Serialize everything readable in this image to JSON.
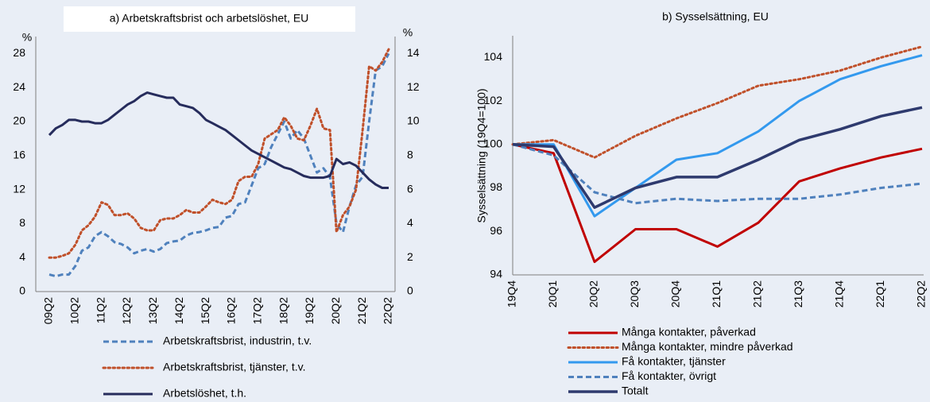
{
  "chart_data": [
    {
      "type": "line",
      "title": "a) Arbetskraftsbrist och arbetslöshet, EU",
      "ylabel": "%",
      "y2label": "%",
      "categories": [
        "09Q2",
        null,
        null,
        null,
        "10Q2",
        null,
        null,
        null,
        "11Q2",
        null,
        null,
        null,
        "12Q2",
        null,
        null,
        null,
        "13Q2",
        null,
        null,
        null,
        "14Q2",
        null,
        null,
        null,
        "15Q2",
        null,
        null,
        null,
        "16Q2",
        null,
        null,
        null,
        "17Q2",
        null,
        null,
        null,
        "18Q2",
        null,
        null,
        null,
        "19Q2",
        null,
        null,
        null,
        "20Q2",
        null,
        null,
        null,
        "21Q2",
        null,
        null,
        null,
        "22Q2"
      ],
      "ylim": [
        0,
        30
      ],
      "yticks": [
        0,
        4,
        8,
        12,
        16,
        20,
        24,
        28
      ],
      "y2lim": [
        0,
        15
      ],
      "y2ticks": [
        0,
        2,
        4,
        6,
        8,
        10,
        12,
        14
      ],
      "series": [
        {
          "name": "Arbetskraftsbrist, industrin, t.v.",
          "color": "#4f81bd",
          "dash": "dashed",
          "values": [
            2.0,
            1.8,
            2.0,
            2.0,
            3.0,
            4.8,
            5.2,
            6.5,
            7.0,
            6.5,
            5.8,
            5.6,
            5.2,
            4.5,
            4.8,
            5.0,
            4.7,
            5.0,
            5.7,
            5.9,
            6.0,
            6.6,
            6.9,
            7.0,
            7.2,
            7.5,
            7.6,
            8.7,
            8.9,
            10.3,
            10.5,
            12.5,
            14.5,
            15.0,
            17.0,
            18.5,
            20.0,
            18.0,
            19.0,
            18.0,
            16.0,
            14.0,
            14.5,
            13.5,
            8.0,
            7.0,
            10.0,
            12.5,
            13.5,
            20.0,
            26.0,
            26.5,
            28.0
          ]
        },
        {
          "name": "Arbetskraftsbrist, tjänster, t.v.",
          "color": "#c0502a",
          "dash": "dotted",
          "values": [
            4.0,
            4.0,
            4.2,
            4.5,
            5.5,
            7.2,
            7.8,
            8.8,
            10.5,
            10.2,
            9.0,
            9.0,
            9.2,
            8.6,
            7.5,
            7.2,
            7.2,
            8.4,
            8.6,
            8.6,
            9.0,
            9.6,
            9.3,
            9.3,
            10.0,
            10.8,
            10.5,
            10.3,
            10.8,
            13.0,
            13.5,
            13.5,
            15.0,
            18.0,
            18.5,
            19.0,
            20.5,
            19.5,
            18.0,
            17.8,
            19.5,
            21.5,
            19.2,
            19.0,
            7.0,
            9.0,
            10.0,
            12.0,
            19.0,
            26.5,
            26.0,
            27.0,
            28.5
          ]
        },
        {
          "name": "Arbetslöshet, t.h.",
          "color": "#262c5c",
          "dash": "solid",
          "axis": "y2",
          "values": [
            9.2,
            9.6,
            9.8,
            10.1,
            10.1,
            10.0,
            10.0,
            9.9,
            9.9,
            10.1,
            10.4,
            10.7,
            11.0,
            11.2,
            11.5,
            11.7,
            11.6,
            11.5,
            11.4,
            11.4,
            11.0,
            10.9,
            10.8,
            10.5,
            10.1,
            9.9,
            9.7,
            9.5,
            9.2,
            8.9,
            8.6,
            8.3,
            8.1,
            7.9,
            7.7,
            7.5,
            7.3,
            7.2,
            7.0,
            6.8,
            6.7,
            6.7,
            6.7,
            6.8,
            7.8,
            7.5,
            7.6,
            7.4,
            7.0,
            6.6,
            6.3,
            6.1,
            6.1
          ]
        }
      ]
    },
    {
      "type": "line",
      "title": "b) Sysselsättning, EU",
      "ylabel": "Sysselsättning (19Q4=100)",
      "categories": [
        "19Q4",
        "20Q1",
        "20Q2",
        "20Q3",
        "20Q4",
        "21Q1",
        "21Q2",
        "21Q3",
        "21Q4",
        "22Q1",
        "22Q2"
      ],
      "ylim": [
        94,
        105
      ],
      "yticks": [
        94,
        96,
        98,
        100,
        102,
        104
      ],
      "series": [
        {
          "name": "Många kontakter, påverkad",
          "color": "#c00000",
          "dash": "solid",
          "values": [
            100,
            99.6,
            94.6,
            96.1,
            96.1,
            95.3,
            96.4,
            98.3,
            98.9,
            99.4,
            99.8
          ]
        },
        {
          "name": "Många kontakter, mindre påverkad",
          "color": "#c0502a",
          "dash": "dotted",
          "values": [
            100,
            100.2,
            99.4,
            100.4,
            101.2,
            101.9,
            102.7,
            103.0,
            103.4,
            104.0,
            104.5
          ]
        },
        {
          "name": "Få kontakter, tjänster",
          "color": "#3399ee",
          "dash": "solid",
          "values": [
            100,
            100.0,
            96.7,
            98.0,
            99.3,
            99.6,
            100.6,
            102.0,
            103.0,
            103.6,
            104.1
          ]
        },
        {
          "name": "Få kontakter, övrigt",
          "color": "#4f81bd",
          "dash": "dashed",
          "values": [
            100,
            99.5,
            97.8,
            97.3,
            97.5,
            97.4,
            97.5,
            97.5,
            97.7,
            98.0,
            98.2
          ]
        },
        {
          "name": "Totalt",
          "color": "#2e3a6e",
          "dash": "solid",
          "width": 3.5,
          "values": [
            100,
            99.9,
            97.1,
            98.0,
            98.5,
            98.5,
            99.3,
            100.2,
            100.7,
            101.3,
            101.7
          ]
        }
      ]
    }
  ]
}
